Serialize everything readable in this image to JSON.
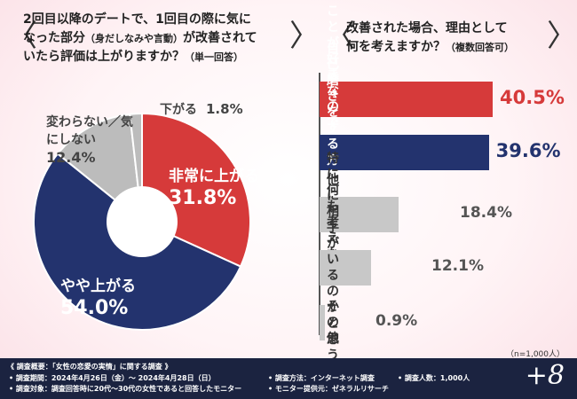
{
  "question1": {
    "lines": [
      "2回目以降のデートで、1回目の際に気に",
      "なった部分",
      "（身だしなみや言動）",
      "が改善されて",
      "いたら評価は上がりますか？",
      "（単一回答）"
    ]
  },
  "question2": {
    "lines": [
      "改善された場合、理由として",
      "何を考えますか？",
      "（複数回答可）"
    ]
  },
  "chart_data": [
    {
      "type": "pie",
      "categories": [
        "非常に上がる",
        "やや上がる",
        "変わらない／気にしない",
        "下がる"
      ],
      "values": [
        31.8,
        54.0,
        12.4,
        1.8
      ],
      "colors": [
        "#d63a3a",
        "#23336e",
        "#bcbcbc",
        "#bcbcbc"
      ],
      "value_labels": [
        "31.8%",
        "54.0%",
        "12.4%",
        "1.8%"
      ]
    },
    {
      "type": "bar",
      "orientation": "horizontal",
      "categories": [
        "私のことが好きなのではと意識する",
        "自己磨きをする方なんだと思う",
        "特に何も考えない",
        "他に相手がいるのかと思う",
        "その他"
      ],
      "display_labels": [
        "私のことが好きなの\nではと意識する",
        "自己磨きをする方\nなんだと思う",
        "特に何も考えない",
        "他に相手が\nいるのかと思う",
        "その他"
      ],
      "values": [
        40.5,
        39.6,
        18.4,
        12.1,
        0.9
      ],
      "value_labels": [
        "40.5%",
        "39.6%",
        "18.4%",
        "12.1%",
        "0.9%"
      ],
      "colors": [
        "#d63a3a",
        "#23336e",
        "#c8c8c8",
        "#c8c8c8",
        "#c8c8c8"
      ]
    }
  ],
  "sample_note": "（n=1,000人）",
  "footer": {
    "title": "《 調査概要：「女性の恋愛の実情」に関する調査 》",
    "period": "• 調査期間：2024年4月26日（金）～ 2024年4月28日（日）",
    "target": "• 調査対象：調査回答時に20代～30代の女性であると回答したモニター",
    "method": "• 調査方法：インターネット調査",
    "provider": "• モニター提供元：ゼネラルリサーチ",
    "count": "• 調査人数：1,000人",
    "logo": "+8"
  }
}
